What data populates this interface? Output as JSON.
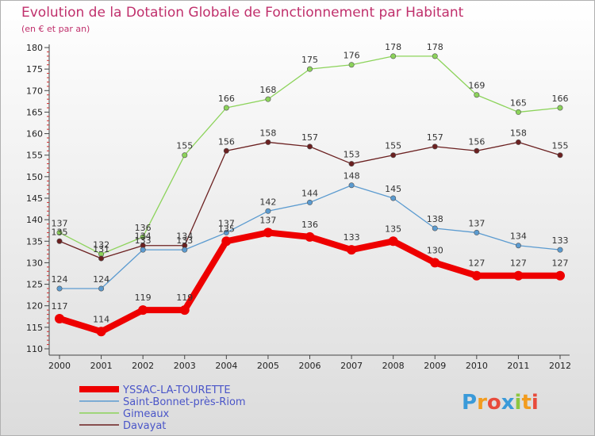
{
  "chart_data": {
    "type": "line",
    "title": "Evolution de la Dotation Globale de Fonctionnement par Habitant",
    "subtitle": "(en € et par an)",
    "xlabel": "",
    "ylabel": "",
    "categories": [
      "2000",
      "2001",
      "2002",
      "2003",
      "2004",
      "2005",
      "2006",
      "2007",
      "2008",
      "2009",
      "2010",
      "2011",
      "2012"
    ],
    "ylim": [
      110,
      180
    ],
    "yticks": [
      110,
      115,
      120,
      125,
      130,
      135,
      140,
      145,
      150,
      155,
      160,
      165,
      170,
      175,
      180
    ],
    "grid": false,
    "legend_position": "bottom-left",
    "series": [
      {
        "name": "YSSAC-LA-TOURETTE",
        "color": "#ee0000",
        "values": [
          117,
          114,
          119,
          119,
          135,
          137,
          136,
          133,
          135,
          130,
          127,
          127,
          127
        ]
      },
      {
        "name": "Saint-Bonnet-près-Riom",
        "color": "#5b9bd0",
        "values": [
          124,
          124,
          133,
          133,
          137,
          142,
          144,
          148,
          145,
          138,
          137,
          134,
          133
        ]
      },
      {
        "name": "Gimeaux",
        "color": "#8cd35a",
        "values": [
          137,
          132,
          136,
          155,
          166,
          168,
          175,
          176,
          178,
          178,
          169,
          165,
          166
        ]
      },
      {
        "name": "Davayat",
        "color": "#6b2020",
        "values": [
          135,
          131,
          134,
          134,
          156,
          158,
          157,
          153,
          155,
          157,
          156,
          158,
          155
        ]
      }
    ]
  },
  "logo": {
    "text": "Proxiti",
    "letters": [
      "P",
      "r",
      "o",
      "x",
      "i",
      "t",
      "i"
    ],
    "colors": [
      "#3a9ad9",
      "#f29c1f",
      "#e84b3c",
      "#3a9ad9",
      "#8cc63f",
      "#f29c1f",
      "#e84b3c"
    ]
  }
}
